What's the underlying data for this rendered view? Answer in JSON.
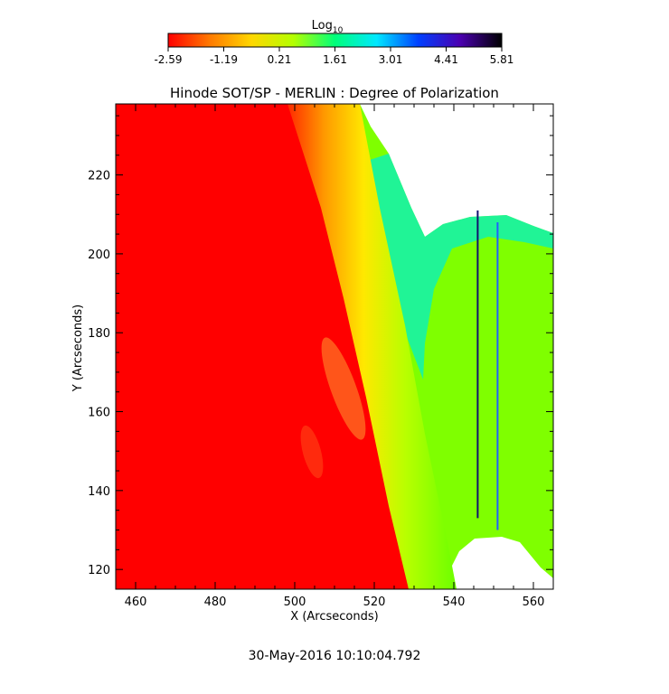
{
  "colorbar": {
    "label_main": "Log",
    "label_sub": "10",
    "ticks": [
      "-2.59",
      "-1.19",
      "0.21",
      "1.61",
      "3.01",
      "4.41",
      "5.81"
    ],
    "stops": [
      "#ff0000",
      "#ff7a00",
      "#ffd700",
      "#b4ff00",
      "#00ff7a",
      "#00e8ff",
      "#0040ff",
      "#4b00b0",
      "#000000"
    ]
  },
  "chart_data": {
    "type": "heatmap",
    "title": "Hinode SOT/SP - MERLIN : Degree of Polarization",
    "xlabel": "X (Arcseconds)",
    "ylabel": "Y (Arcseconds)",
    "xlim": [
      455,
      565
    ],
    "ylim": [
      115,
      238
    ],
    "xticks": [
      460,
      480,
      500,
      520,
      540,
      560
    ],
    "yticks": [
      120,
      140,
      160,
      180,
      200,
      220
    ],
    "color_scale": "log10",
    "color_range": [
      -2.59,
      5.81
    ],
    "limb_edge": [
      [
        505,
        238
      ],
      [
        515,
        200
      ],
      [
        522,
        160
      ],
      [
        530,
        115
      ]
    ],
    "background_color": "#ff0000",
    "blank_color": "#ffffff",
    "vertical_lines": [
      {
        "x": 546,
        "y_from": 133,
        "y_to": 211,
        "color": "#101070"
      },
      {
        "x": 551,
        "y_from": 130,
        "y_to": 208,
        "color": "#2060ff"
      }
    ]
  },
  "footer": {
    "timestamp": "30-May-2016 10:10:04.792"
  }
}
